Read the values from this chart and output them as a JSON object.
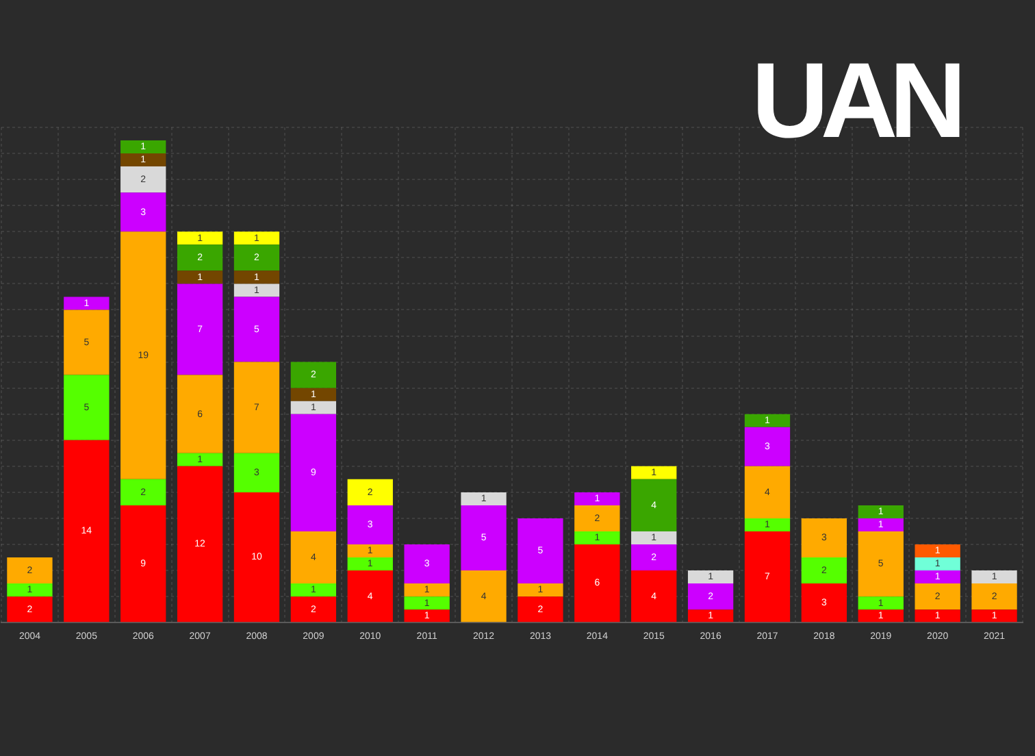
{
  "chart_data": {
    "type": "bar",
    "title": "UAN",
    "stacked": true,
    "data_labels": true,
    "grid": true,
    "tick_labels": "x",
    "categories": [
      "2004",
      "2005",
      "2006",
      "2007",
      "2008",
      "2009",
      "2010",
      "2011",
      "2012",
      "2013",
      "2014",
      "2015",
      "2016",
      "2017",
      "2018",
      "2019",
      "2020",
      "2021"
    ],
    "ylim": [
      0,
      38
    ],
    "yticks": [
      {
        "value": 0,
        "label": null
      },
      {
        "value": 2,
        "label": null
      },
      {
        "value": 4,
        "label": null
      },
      {
        "value": 6,
        "label": null
      },
      {
        "value": 8,
        "label": null
      },
      {
        "value": 10,
        "label": null
      },
      {
        "value": 12,
        "label": null
      },
      {
        "value": 14,
        "label": null
      },
      {
        "value": 16,
        "label": null
      },
      {
        "value": 18,
        "label": null
      },
      {
        "value": 20,
        "label": null
      },
      {
        "value": 22,
        "label": null
      },
      {
        "value": 24,
        "label": null
      },
      {
        "value": 26,
        "label": null
      },
      {
        "value": 28,
        "label": null
      },
      {
        "value": 30,
        "label": null
      },
      {
        "value": 32,
        "label": null
      },
      {
        "value": 34,
        "label": null
      },
      {
        "value": 36,
        "label": null
      },
      {
        "value": 38,
        "label": null
      }
    ],
    "series": [
      {
        "color": "#ff0000",
        "values": [
          2,
          14,
          9,
          12,
          10,
          2,
          4,
          1,
          null,
          2,
          6,
          4,
          1,
          7,
          3,
          1,
          1,
          1
        ]
      },
      {
        "color": "#55ff00",
        "values": [
          1,
          5,
          2,
          1,
          3,
          1,
          1,
          1,
          null,
          null,
          1,
          null,
          null,
          1,
          2,
          1,
          null,
          null
        ]
      },
      {
        "color": "#ffaa00",
        "values": [
          2,
          5,
          19,
          6,
          7,
          4,
          1,
          1,
          4,
          1,
          2,
          null,
          null,
          4,
          3,
          5,
          2,
          2
        ]
      },
      {
        "color": "#cc00ff",
        "values": [
          null,
          1,
          3,
          7,
          5,
          9,
          3,
          3,
          5,
          5,
          1,
          2,
          2,
          3,
          null,
          1,
          1,
          null
        ]
      },
      {
        "color": "#d9d9d9",
        "values": [
          null,
          null,
          2,
          null,
          1,
          1,
          null,
          null,
          1,
          null,
          null,
          1,
          1,
          null,
          null,
          null,
          null,
          1
        ]
      },
      {
        "color": "#734600",
        "values": [
          null,
          null,
          1,
          1,
          1,
          1,
          null,
          null,
          null,
          null,
          null,
          null,
          null,
          null,
          null,
          null,
          null,
          null
        ]
      },
      {
        "color": "#3aa600",
        "values": [
          null,
          null,
          1,
          2,
          2,
          2,
          null,
          null,
          null,
          null,
          null,
          4,
          null,
          1,
          null,
          1,
          null,
          null
        ]
      },
      {
        "color": "#ffff00",
        "values": [
          null,
          null,
          null,
          1,
          1,
          null,
          2,
          null,
          null,
          null,
          null,
          1,
          null,
          null,
          null,
          null,
          null,
          null
        ]
      },
      {
        "color": "#70ffd8",
        "values": [
          null,
          null,
          null,
          null,
          null,
          null,
          null,
          null,
          null,
          null,
          null,
          null,
          null,
          null,
          null,
          null,
          1,
          null
        ]
      },
      {
        "color": "#ff5a00",
        "values": [
          null,
          null,
          null,
          null,
          null,
          null,
          null,
          null,
          null,
          null,
          null,
          null,
          null,
          null,
          null,
          null,
          1,
          null
        ]
      }
    ]
  }
}
